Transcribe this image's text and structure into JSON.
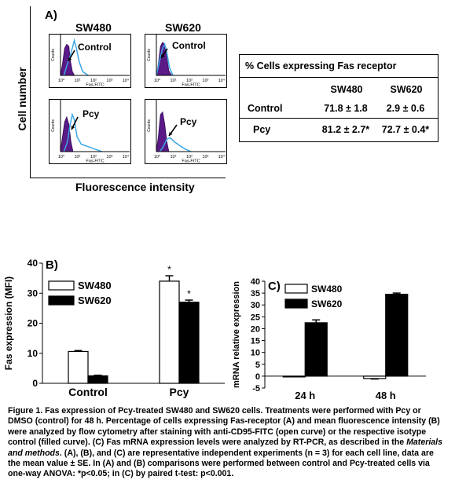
{
  "panel_a": {
    "label": "A)",
    "cell_lines": [
      "SW480",
      "SW620"
    ],
    "y_axis_title": "Cell number",
    "x_axis_title": "Fluorescence intensity",
    "hist_ylabel": "Counts",
    "hist_xlabel": "Fas-FITC",
    "xtick_labels": [
      "10⁰",
      "10¹",
      "10²",
      "10³",
      "10⁴"
    ],
    "histograms": [
      {
        "line": "SW480",
        "treatment": "Control",
        "label": "Control"
      },
      {
        "line": "SW620",
        "treatment": "Control",
        "label": "Control"
      },
      {
        "line": "SW480",
        "treatment": "Pcy",
        "label": "Pcy"
      },
      {
        "line": "SW620",
        "treatment": "Pcy",
        "label": "Pcy"
      }
    ],
    "table": {
      "title": "% Cells expressing  Fas receptor",
      "columns": [
        "SW480",
        "SW620"
      ],
      "rows": [
        {
          "label": "Control",
          "values": [
            "71.8 ± 1.8",
            "2.9 ± 0.6"
          ]
        },
        {
          "label": "Pcy",
          "values": [
            "81.2 ± 2.7*",
            "72.7 ± 0.4*"
          ]
        }
      ]
    }
  },
  "chart_data": [
    {
      "panel": "B)",
      "type": "bar",
      "categories": [
        "Control",
        "Pcy"
      ],
      "ylabel": "Fas expression (MFI)",
      "ylim": [
        0,
        40
      ],
      "yticks": [
        "0",
        "10",
        "20",
        "30",
        "40"
      ],
      "series": [
        {
          "name": "SW480",
          "fill": "#ffffff",
          "values": [
            10.6,
            34.0
          ],
          "errors": [
            0.3,
            1.8
          ]
        },
        {
          "name": "SW620",
          "fill": "#000000",
          "values": [
            2.5,
            27.0
          ],
          "errors": [
            0.2,
            0.7
          ]
        }
      ],
      "annotations": [
        {
          "category": "Pcy",
          "series": "SW480",
          "text": "*"
        },
        {
          "category": "Pcy",
          "series": "SW620",
          "text": "*"
        }
      ],
      "legend": "top-left"
    },
    {
      "panel": "C)",
      "type": "bar",
      "categories": [
        "24 h",
        "48 h"
      ],
      "ylabel": "mRNA relative expression",
      "ylim": [
        -5,
        40
      ],
      "yticks": [
        "-5",
        "0",
        "5",
        "10",
        "15",
        "20",
        "25",
        "30",
        "35",
        "40"
      ],
      "series": [
        {
          "name": "SW480",
          "fill": "#ffffff",
          "values": [
            0,
            -1.0
          ],
          "errors": [
            0,
            0.2
          ]
        },
        {
          "name": "SW620",
          "fill": "#000000",
          "values": [
            22.5,
            34.5
          ],
          "errors": [
            1.2,
            0.5
          ]
        }
      ],
      "legend": "top-left"
    }
  ],
  "caption": {
    "figure_label": "Figure 1.",
    "text_1": " Fas expression of Pcy-treated SW480 and SW620 cells. Treatments were performed with Pcy or DMSO (control) for 48 h. Percentage of cells expressing Fas-receptor (A) and mean fluorescence intensity (B) were analyzed by flow cytometry after staining with anti-CD95-FITC (open curve) or the respective isotype control (filled curve). (C) Fas mRNA expression levels were analyzed by RT-PCR, as described in the ",
    "italic": "Materials and methods",
    "text_2": ". (A), (B), and (C) are representative independent experiments (n = 3) for each cell line, data are the mean value ± SE. In (A) and (B) comparisons were performed between control and Pcy-treated cells via one-way ANOVA: *p<0.05; in (C) by paired t-test: p<0.001."
  }
}
